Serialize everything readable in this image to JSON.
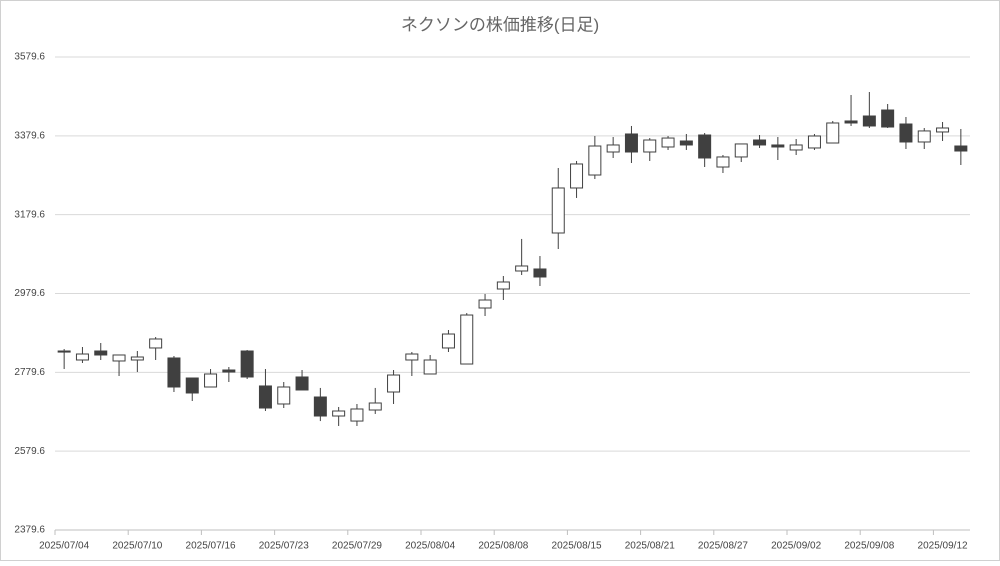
{
  "chart_data": {
    "type": "candlestick",
    "title": "ネクソンの株価推移(日足)",
    "categories": [
      "2025/07/04",
      null,
      null,
      null,
      "2025/07/10",
      null,
      null,
      null,
      "2025/07/16",
      null,
      null,
      null,
      "2025/07/23",
      null,
      null,
      null,
      "2025/07/29",
      null,
      null,
      null,
      "2025/08/04",
      null,
      null,
      null,
      "2025/08/08",
      null,
      null,
      null,
      "2025/08/15",
      null,
      null,
      null,
      "2025/08/21",
      null,
      null,
      null,
      "2025/08/27",
      null,
      null,
      null,
      "2025/09/02",
      null,
      null,
      null,
      "2025/09/08",
      null,
      null,
      null,
      "2025/09/12",
      null
    ],
    "open": [
      2833.7,
      2810.9,
      2833.7,
      2808.4,
      2810.9,
      2841.4,
      2816,
      2765.2,
      2742.4,
      2785.5,
      2833.7,
      2745,
      2699.3,
      2767.8,
      2717,
      2668.8,
      2656,
      2684,
      2729.7,
      2810.9,
      2775.4,
      2841.4,
      2800.7,
      2942.8,
      2991,
      3036.7,
      3041.8,
      3133.1,
      3247.3,
      3280.2,
      3338.6,
      3384.3,
      3338.6,
      3351.3,
      3366.5,
      3381.7,
      3300.5,
      3326,
      3369,
      3356.4,
      3343.7,
      3348.8,
      3361.4,
      3417.3,
      3429.9,
      3445.1,
      3409.6,
      3364,
      3389.4,
      3353.8
    ],
    "high": [
      2838.8,
      2843.9,
      2854,
      2823.6,
      2833.7,
      2869.2,
      2821,
      2765.2,
      2788,
      2793.1,
      2836.3,
      2788,
      2755.1,
      2785.5,
      2740,
      2691.7,
      2699.3,
      2740,
      2785.5,
      2831.2,
      2823.6,
      2887,
      2930,
      2978.4,
      3024,
      3118,
      3074.7,
      3298,
      3315.8,
      3379.2,
      3376.6,
      3404.6,
      3374,
      3379.2,
      3384.3,
      3386.8,
      3331,
      3359,
      3381.7,
      3376.6,
      3371.6,
      3384.3,
      3417.3,
      3483.2,
      3490.8,
      3460.4,
      3427.4,
      3399.5,
      3414.7,
      3397
    ],
    "low": [
      2788,
      2803.3,
      2810.9,
      2770.3,
      2780.4,
      2810.9,
      2729.7,
      2706.9,
      2742.4,
      2755.1,
      2762.7,
      2681.5,
      2689.1,
      2734.8,
      2656,
      2643.5,
      2643.5,
      2674,
      2699.3,
      2770.3,
      2775.4,
      2831.2,
      2800.7,
      2922.5,
      2963.1,
      3026.5,
      2998.6,
      3092.5,
      3222,
      3270,
      3323.4,
      3310.7,
      3315.8,
      3343.7,
      3343.7,
      3300.5,
      3285.3,
      3313.2,
      3348.8,
      3318.3,
      3331,
      3343.7,
      3361.4,
      3404.6,
      3399.5,
      3399.5,
      3346.2,
      3346.2,
      3366.5,
      3305.6
    ],
    "close": [
      2831,
      2826.1,
      2823.6,
      2823.6,
      2818.5,
      2864.2,
      2742.4,
      2727.2,
      2775.4,
      2780.4,
      2767.8,
      2689.1,
      2742.4,
      2734.8,
      2668.8,
      2681.5,
      2686.6,
      2701.8,
      2772.8,
      2826.1,
      2810.9,
      2876.8,
      2925,
      2963.1,
      3008.8,
      3049.4,
      3021.5,
      3247.3,
      3308.2,
      3353.8,
      3356.4,
      3338.6,
      3369,
      3374,
      3356.4,
      3323.4,
      3326,
      3359,
      3356.4,
      3351.3,
      3356.4,
      3379.2,
      3412.2,
      3412.2,
      3404.6,
      3402,
      3364,
      3392,
      3399.5,
      3341.1
    ],
    "up_color": "#ffffff",
    "down_color": "#404040",
    "ylim": [
      2379.6,
      3579.6
    ],
    "yticks": [
      2379.6,
      2579.6,
      2779.6,
      2979.6,
      3179.6,
      3379.6,
      3579.6
    ],
    "grid": true
  }
}
